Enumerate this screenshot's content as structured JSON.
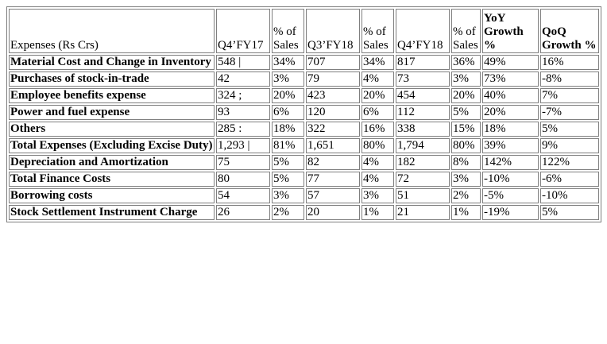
{
  "table": {
    "headers": [
      "Expenses (Rs Crs)",
      "Q4’FY17",
      "% of Sales",
      "Q3’FY18",
      "% of Sales",
      "Q4’FY18",
      "% of Sales",
      "YoY Growth %",
      "QoQ Growth %"
    ],
    "rows": [
      [
        "Material Cost and Change in Inventory",
        "548 |",
        "34%",
        "707",
        "34%",
        "817",
        "36%",
        "49%",
        "16%"
      ],
      [
        "Purchases of stock-in-trade",
        "42",
        "3%",
        "79",
        "4%",
        "73",
        "3%",
        "73%",
        "-8%"
      ],
      [
        "Employee benefits expense",
        "324 ;",
        "20%",
        "423",
        "20%",
        "454",
        "20%",
        "40%",
        "7%"
      ],
      [
        "Power and fuel expense",
        "93",
        "6%",
        "120",
        "6%",
        "112",
        "5%",
        "20%",
        "-7%"
      ],
      [
        "Others",
        "285 :",
        "18%",
        "322",
        "16%",
        "338",
        "15%",
        "18%",
        "5%"
      ],
      [
        "Total Expenses (Excluding Excise Duty)",
        "1,293 |",
        "81%",
        "1,651",
        "80%",
        "1,794",
        "80%",
        "39%",
        "9%"
      ],
      [
        "Depreciation and Amortization",
        "75",
        "5%",
        "82",
        "4%",
        "182",
        "8%",
        "142%",
        "122%"
      ],
      [
        "Total Finance Costs",
        "80",
        "5%",
        "77",
        "4%",
        "72",
        "3%",
        "-10%",
        "-6%"
      ],
      [
        "Borrowing costs",
        "54",
        "3%",
        "57",
        "3%",
        "51",
        "2%",
        "-5%",
        "-10%"
      ],
      [
        "Stock Settlement Instrument Charge",
        "26",
        "2%",
        "20",
        "1%",
        "21",
        "1%",
        "-19%",
        "5%"
      ]
    ]
  }
}
